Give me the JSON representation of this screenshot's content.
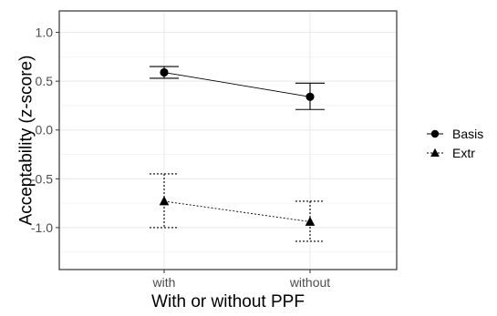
{
  "chart_data": {
    "type": "line",
    "xlabel": "With or without PPF",
    "ylabel": "Acceptability (z-score)",
    "categories": [
      "with",
      "without"
    ],
    "ylim": [
      -1.43,
      1.22
    ],
    "yticks": [
      1.0,
      0.5,
      0.0,
      -0.5,
      -1.0
    ],
    "ytick_labels": [
      "1.0",
      "0.5",
      "0.0",
      "-0.5",
      "-1.0"
    ],
    "grid": true,
    "theme": "bw",
    "legend_position": "right",
    "series": [
      {
        "name": "Basis",
        "marker": "circle",
        "linestyle": "solid",
        "values": [
          0.59,
          0.34
        ],
        "err_low": [
          0.53,
          0.21
        ],
        "err_high": [
          0.65,
          0.48
        ]
      },
      {
        "name": "Extr",
        "marker": "triangle",
        "linestyle": "dotted",
        "values": [
          -0.73,
          -0.94
        ],
        "err_low": [
          -1.0,
          -1.14
        ],
        "err_high": [
          -0.45,
          -0.73
        ]
      }
    ]
  }
}
